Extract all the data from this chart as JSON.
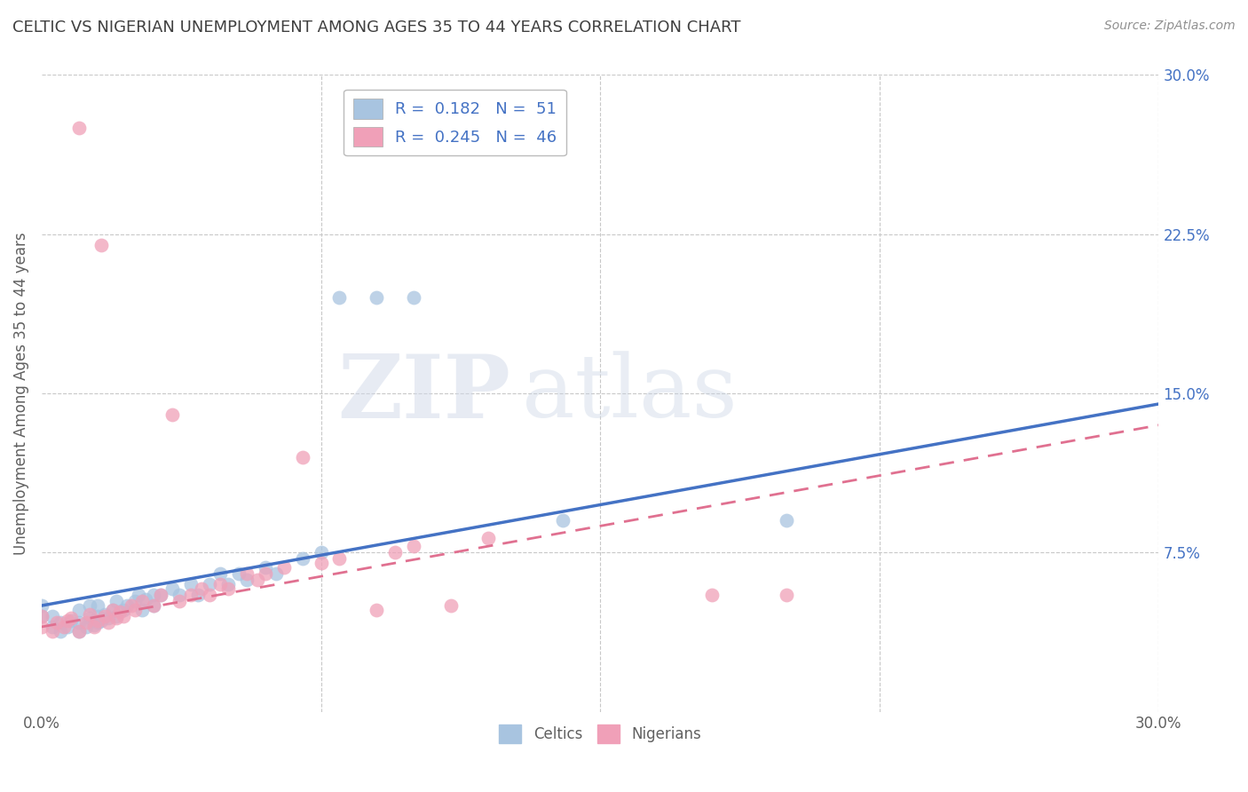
{
  "title": "CELTIC VS NIGERIAN UNEMPLOYMENT AMONG AGES 35 TO 44 YEARS CORRELATION CHART",
  "source": "Source: ZipAtlas.com",
  "ylabel": "Unemployment Among Ages 35 to 44 years",
  "xlim": [
    0.0,
    0.3
  ],
  "ylim": [
    0.0,
    0.3
  ],
  "celtic_color": "#a8c4e0",
  "nigerian_color": "#f0a0b8",
  "celtic_line_color": "#4472c4",
  "nigerian_line_color": "#e07090",
  "legend_text_color": "#4472c4",
  "title_color": "#404040",
  "background_color": "#ffffff",
  "grid_color": "#c8c8c8",
  "R_celtic": 0.182,
  "N_celtic": 51,
  "R_nigerian": 0.245,
  "N_nigerian": 46,
  "celtic_x": [
    0.0,
    0.0,
    0.003,
    0.003,
    0.005,
    0.005,
    0.007,
    0.008,
    0.01,
    0.01,
    0.01,
    0.012,
    0.013,
    0.013,
    0.014,
    0.015,
    0.015,
    0.015,
    0.016,
    0.017,
    0.018,
    0.019,
    0.02,
    0.02,
    0.022,
    0.023,
    0.025,
    0.026,
    0.027,
    0.028,
    0.03,
    0.03,
    0.032,
    0.035,
    0.037,
    0.04,
    0.042,
    0.045,
    0.048,
    0.05,
    0.053,
    0.055,
    0.06,
    0.063,
    0.07,
    0.075,
    0.08,
    0.09,
    0.1,
    0.14,
    0.2
  ],
  "celtic_y": [
    0.045,
    0.05,
    0.04,
    0.045,
    0.038,
    0.042,
    0.04,
    0.043,
    0.038,
    0.042,
    0.048,
    0.04,
    0.044,
    0.05,
    0.041,
    0.042,
    0.045,
    0.05,
    0.043,
    0.046,
    0.044,
    0.048,
    0.045,
    0.052,
    0.048,
    0.05,
    0.052,
    0.055,
    0.048,
    0.053,
    0.05,
    0.055,
    0.055,
    0.058,
    0.055,
    0.06,
    0.055,
    0.06,
    0.065,
    0.06,
    0.065,
    0.062,
    0.068,
    0.065,
    0.072,
    0.075,
    0.195,
    0.195,
    0.195,
    0.09,
    0.09
  ],
  "nigerian_x": [
    0.0,
    0.0,
    0.003,
    0.004,
    0.006,
    0.007,
    0.008,
    0.01,
    0.01,
    0.012,
    0.013,
    0.014,
    0.015,
    0.016,
    0.017,
    0.018,
    0.019,
    0.02,
    0.021,
    0.022,
    0.024,
    0.025,
    0.027,
    0.03,
    0.032,
    0.035,
    0.037,
    0.04,
    0.043,
    0.045,
    0.048,
    0.05,
    0.055,
    0.058,
    0.06,
    0.065,
    0.07,
    0.075,
    0.08,
    0.09,
    0.095,
    0.1,
    0.11,
    0.12,
    0.18,
    0.2
  ],
  "nigerian_y": [
    0.04,
    0.045,
    0.038,
    0.042,
    0.04,
    0.043,
    0.044,
    0.038,
    0.275,
    0.042,
    0.046,
    0.04,
    0.043,
    0.22,
    0.045,
    0.042,
    0.048,
    0.044,
    0.047,
    0.045,
    0.05,
    0.048,
    0.052,
    0.05,
    0.055,
    0.14,
    0.052,
    0.055,
    0.058,
    0.055,
    0.06,
    0.058,
    0.065,
    0.062,
    0.065,
    0.068,
    0.12,
    0.07,
    0.072,
    0.048,
    0.075,
    0.078,
    0.05,
    0.082,
    0.055,
    0.055
  ]
}
